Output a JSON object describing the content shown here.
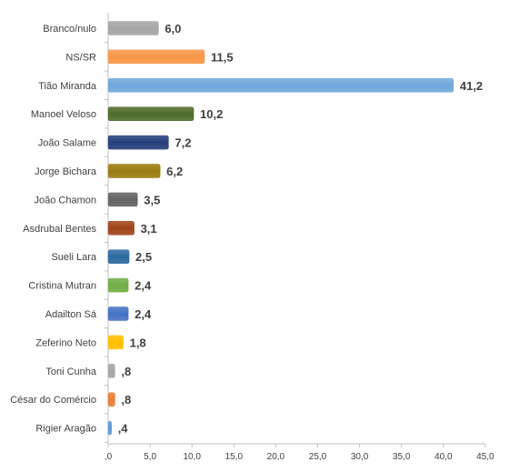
{
  "chart_data": {
    "type": "bar",
    "orientation": "horizontal",
    "title": "",
    "xlabel": "",
    "ylabel": "",
    "categories": [
      "Branco/nulo",
      "NS/SR",
      "Tião Miranda",
      "Manoel Veloso",
      "João Salame",
      "Jorge Bichara",
      "João Chamon",
      "Asdrubal Bentes",
      "Sueli Lara",
      "Cristina Mutran",
      "Adailton Sá",
      "Zeferino Neto",
      "Toni Cunha",
      "César do Comércio",
      "Rigier Aragão"
    ],
    "values": [
      6.0,
      11.5,
      41.2,
      10.2,
      7.2,
      6.2,
      3.5,
      3.1,
      2.5,
      2.4,
      2.4,
      1.8,
      0.8,
      0.8,
      0.4
    ],
    "value_labels": [
      "6,0",
      "11,5",
      "41,2",
      "10,2",
      "7,2",
      "6,2",
      "3,5",
      "3,1",
      "2,5",
      "2,4",
      "2,4",
      "1,8",
      ",8",
      ",8",
      ",4"
    ],
    "colors": [
      "#a5a5a5",
      "#f79646",
      "#6fa8dc",
      "#4e6b2a",
      "#243f7a",
      "#9c7a0f",
      "#636363",
      "#a0441a",
      "#2e6aa0",
      "#71ad47",
      "#4472c4",
      "#ffc000",
      "#a5a5a5",
      "#ed7d31",
      "#5b9bd5"
    ],
    "xlim": [
      0,
      45
    ],
    "xticks": [
      0,
      5,
      10,
      15,
      20,
      25,
      30,
      35,
      40,
      45
    ],
    "xtick_labels": [
      ",0",
      "5,0",
      "10,0",
      "15,0",
      "20,0",
      "25,0",
      "30,0",
      "35,0",
      "40,0",
      "45,0"
    ],
    "grid": false,
    "legend": "none"
  }
}
